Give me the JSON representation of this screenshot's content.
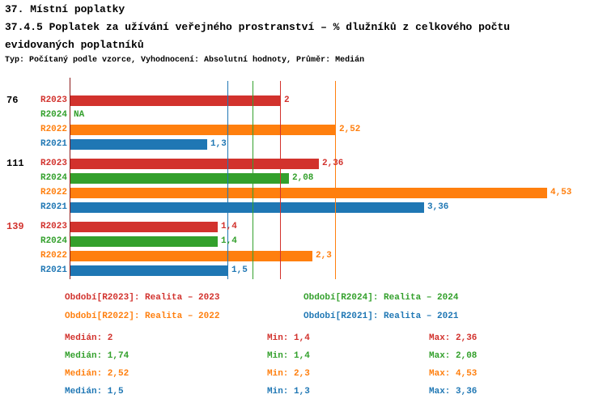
{
  "chart_data": {
    "type": "bar",
    "orientation": "horizontal",
    "title_lines": [
      "37. Místní poplatky",
      "37.4.5 Poplatek za užívání veřejného prostranství – % dlužníků z celkového počtu",
      "evidovaných poplatníků"
    ],
    "subtitle": "Typ: Počítaný podle vzorce, Vyhodnocení: Absolutní hodnoty, Průměr: Medián",
    "xlim": [
      0,
      5
    ],
    "grid": false,
    "legend_position": "bottom",
    "series": [
      {
        "name": "R2023",
        "color": "#d2322d",
        "legend": "Období[R2023]: Realita – 2023"
      },
      {
        "name": "R2024",
        "color": "#33a02c",
        "legend": "Období[R2024]: Realita – 2024"
      },
      {
        "name": "R2022",
        "color": "#ff7f0e",
        "legend": "Období[R2022]: Realita – 2022"
      },
      {
        "name": "R2021",
        "color": "#1f77b4",
        "legend": "Období[R2021]: Realita – 2021"
      }
    ],
    "groups": [
      {
        "label": "76",
        "highlighted": false,
        "bars": [
          {
            "series": "R2023",
            "value": 2,
            "value_label": "2"
          },
          {
            "series": "R2024",
            "value": null,
            "value_label": "NA"
          },
          {
            "series": "R2022",
            "value": 2.52,
            "value_label": "2,52"
          },
          {
            "series": "R2021",
            "value": 1.3,
            "value_label": "1,3"
          }
        ]
      },
      {
        "label": "111",
        "highlighted": false,
        "bars": [
          {
            "series": "R2023",
            "value": 2.36,
            "value_label": "2,36"
          },
          {
            "series": "R2024",
            "value": 2.08,
            "value_label": "2,08"
          },
          {
            "series": "R2022",
            "value": 4.53,
            "value_label": "4,53"
          },
          {
            "series": "R2021",
            "value": 3.36,
            "value_label": "3,36"
          }
        ]
      },
      {
        "label": "139",
        "highlighted": true,
        "bars": [
          {
            "series": "R2023",
            "value": 1.4,
            "value_label": "1,4"
          },
          {
            "series": "R2024",
            "value": 1.4,
            "value_label": "1,4"
          },
          {
            "series": "R2022",
            "value": 2.3,
            "value_label": "2,3"
          },
          {
            "series": "R2021",
            "value": 1.5,
            "value_label": "1,5"
          }
        ]
      }
    ],
    "median_lines": [
      {
        "series": "R2023",
        "value": 2
      },
      {
        "series": "R2024",
        "value": 1.74
      },
      {
        "series": "R2022",
        "value": 2.52
      },
      {
        "series": "R2021",
        "value": 1.5
      }
    ],
    "stats": [
      {
        "series": "R2023",
        "median_label": "Medián: 2",
        "min_label": "Min: 1,4",
        "max_label": "Max: 2,36"
      },
      {
        "series": "R2024",
        "median_label": "Medián: 1,74",
        "min_label": "Min: 1,4",
        "max_label": "Max: 2,08"
      },
      {
        "series": "R2022",
        "median_label": "Medián: 2,52",
        "min_label": "Min: 2,3",
        "max_label": "Max: 4,53"
      },
      {
        "series": "R2021",
        "median_label": "Medián: 1,5",
        "min_label": "Min: 1,3",
        "max_label": "Max: 3,36"
      }
    ]
  },
  "colors": {
    "axis": "#8b1a1a",
    "highlight_group_label": "#d2322d",
    "default_group_label": "#000000",
    "background": "#ffffff"
  }
}
